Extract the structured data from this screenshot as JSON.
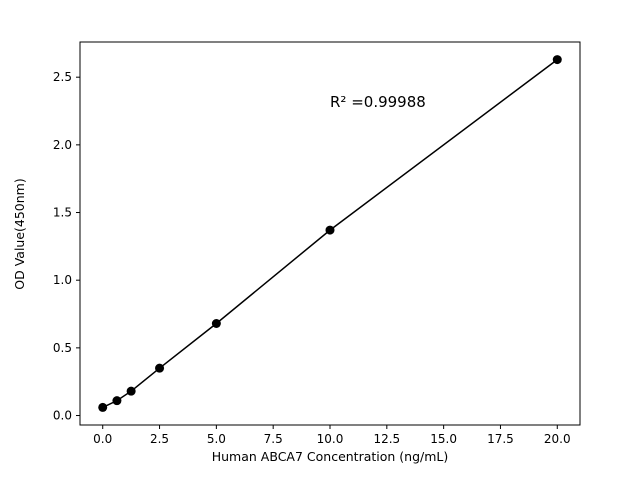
{
  "chart_data": {
    "type": "scatter",
    "title": "",
    "xlabel": "Human ABCA7 Concentration (ng/mL)",
    "ylabel": "OD Value(450nm)",
    "annotation": "R² =0.99988",
    "annotation_xy": [
      10,
      2.28
    ],
    "x": [
      0,
      0.625,
      1.25,
      2.5,
      5,
      10,
      20
    ],
    "y": [
      0.06,
      0.11,
      0.18,
      0.35,
      0.68,
      1.37,
      2.63
    ],
    "xlim": [
      -1,
      21
    ],
    "ylim": [
      -0.07,
      2.76
    ],
    "xticks": [
      0.0,
      2.5,
      5.0,
      7.5,
      10.0,
      12.5,
      15.0,
      17.5,
      20.0
    ],
    "xtick_labels": [
      "0.0",
      "2.5",
      "5.0",
      "7.5",
      "10.0",
      "12.5",
      "15.0",
      "17.5",
      "20.0"
    ],
    "yticks": [
      0.0,
      0.5,
      1.0,
      1.5,
      2.0,
      2.5
    ],
    "ytick_labels": [
      "0.0",
      "0.5",
      "1.0",
      "1.5",
      "2.0",
      "2.5"
    ],
    "grid": false,
    "legend": null,
    "line_color": "#000000",
    "marker_color": "#000000",
    "background_color": "#ffffff",
    "marker_style": "o",
    "curve_fit": "linear"
  }
}
